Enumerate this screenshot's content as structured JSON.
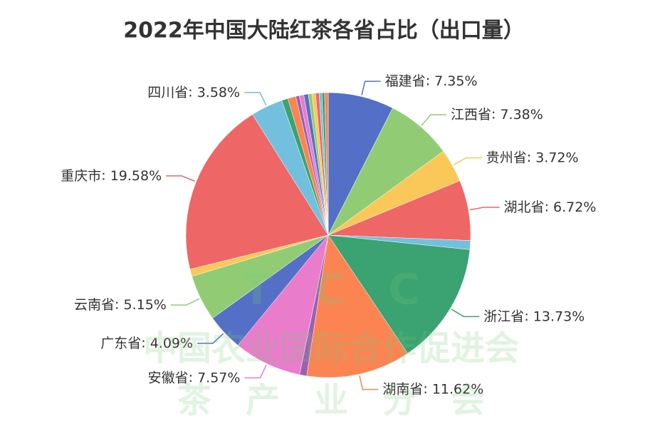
{
  "chart_data": {
    "type": "pie",
    "title": "2022年中国大陆红茶各省占比（出口量）",
    "categories": [
      "福建省",
      "江西省",
      "贵州省",
      "湖北省",
      null,
      "浙江省",
      "湖南省",
      null,
      "安徽省",
      "广东省",
      "云南省",
      null,
      "重庆市",
      "四川省",
      null,
      null,
      null,
      null,
      null,
      null,
      null,
      null,
      null,
      null,
      null
    ],
    "values": [
      7.35,
      7.38,
      3.72,
      6.72,
      1.0,
      13.73,
      11.62,
      0.8,
      7.57,
      4.09,
      5.15,
      0.8,
      19.58,
      3.58,
      0.7,
      0.9,
      0.4,
      0.5,
      0.5,
      0.4,
      0.4,
      0.4,
      0.3,
      0.3,
      0.4
    ],
    "value_labels": [
      "7.35%",
      "7.38%",
      "3.72%",
      "6.72%",
      null,
      "13.73%",
      "11.62%",
      null,
      "7.57%",
      "4.09%",
      "5.15%",
      null,
      "19.58%",
      "3.58%",
      null,
      null,
      null,
      null,
      null,
      null,
      null,
      null,
      null,
      null,
      null
    ],
    "colors": [
      "#5470c6",
      "#91cc75",
      "#fac858",
      "#ee6666",
      "#73c0de",
      "#3ba272",
      "#fc8452",
      "#9a60b4",
      "#ea7ccc"
    ],
    "watermark": [
      "T　C　C",
      "中国农业国际合作促进会",
      "茶　产　业　分　会"
    ]
  }
}
